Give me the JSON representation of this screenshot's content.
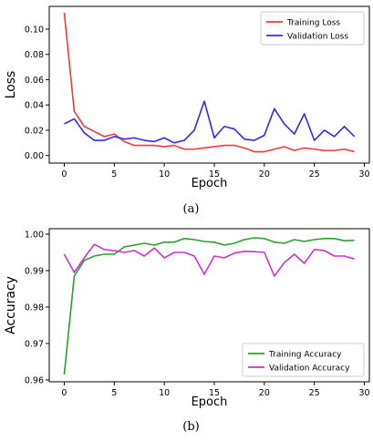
{
  "chart_data": [
    {
      "type": "line",
      "caption": "(a)",
      "xlabel": "Epoch",
      "ylabel": "Loss",
      "xlim": [
        -1.5,
        30.5
      ],
      "ylim": [
        -0.006,
        0.118
      ],
      "xticks": [
        0,
        5,
        10,
        15,
        20,
        25,
        30
      ],
      "yticks": [
        0.0,
        0.02,
        0.04,
        0.06,
        0.08,
        0.1
      ],
      "ytick_labels": [
        "0.00",
        "0.02",
        "0.04",
        "0.06",
        "0.08",
        "0.10"
      ],
      "grid": false,
      "legend_position": "top-right",
      "x": [
        0,
        1,
        2,
        3,
        4,
        5,
        6,
        7,
        8,
        9,
        10,
        11,
        12,
        13,
        14,
        15,
        16,
        17,
        18,
        19,
        20,
        21,
        22,
        23,
        24,
        25,
        26,
        27,
        28,
        29
      ],
      "series": [
        {
          "name": "Training Loss",
          "color": "#ef3b3b",
          "values": [
            0.113,
            0.035,
            0.023,
            0.019,
            0.015,
            0.017,
            0.011,
            0.008,
            0.008,
            0.008,
            0.007,
            0.008,
            0.005,
            0.005,
            0.006,
            0.007,
            0.008,
            0.008,
            0.006,
            0.003,
            0.003,
            0.005,
            0.007,
            0.004,
            0.006,
            0.005,
            0.004,
            0.004,
            0.005,
            0.003
          ]
        },
        {
          "name": "Validation Loss",
          "color": "#2b2bf0",
          "values": [
            0.025,
            0.029,
            0.018,
            0.012,
            0.012,
            0.015,
            0.013,
            0.014,
            0.012,
            0.011,
            0.014,
            0.01,
            0.012,
            0.02,
            0.043,
            0.014,
            0.023,
            0.021,
            0.013,
            0.012,
            0.016,
            0.037,
            0.025,
            0.017,
            0.033,
            0.012,
            0.02,
            0.015,
            0.023,
            0.015
          ]
        }
      ]
    },
    {
      "type": "line",
      "caption": "(b)",
      "xlabel": "Epoch",
      "ylabel": "Accuracy",
      "xlim": [
        -1.5,
        30.5
      ],
      "ylim": [
        0.9595,
        1.0015
      ],
      "xticks": [
        0,
        5,
        10,
        15,
        20,
        25,
        30
      ],
      "yticks": [
        0.96,
        0.97,
        0.98,
        0.99,
        1.0
      ],
      "ytick_labels": [
        "0.96",
        "0.97",
        "0.98",
        "0.99",
        "1.00"
      ],
      "grid": false,
      "legend_position": "bottom-right",
      "x": [
        0,
        1,
        2,
        3,
        4,
        5,
        6,
        7,
        8,
        9,
        10,
        11,
        12,
        13,
        14,
        15,
        16,
        17,
        18,
        19,
        20,
        21,
        22,
        23,
        24,
        25,
        26,
        27,
        28,
        29
      ],
      "series": [
        {
          "name": "Training Accuracy",
          "color": "#2ca02c",
          "values": [
            0.9615,
            0.9885,
            0.9928,
            0.994,
            0.9945,
            0.9945,
            0.9965,
            0.997,
            0.9975,
            0.997,
            0.9978,
            0.9978,
            0.9988,
            0.9985,
            0.998,
            0.9978,
            0.997,
            0.9975,
            0.9985,
            0.999,
            0.9988,
            0.9978,
            0.9975,
            0.9985,
            0.998,
            0.9985,
            0.9988,
            0.9988,
            0.9982,
            0.9983
          ]
        },
        {
          "name": "Validation Accuracy",
          "color": "#cc33cc",
          "values": [
            0.9945,
            0.9895,
            0.9935,
            0.9972,
            0.9958,
            0.9955,
            0.995,
            0.9955,
            0.994,
            0.9962,
            0.9935,
            0.995,
            0.995,
            0.994,
            0.989,
            0.994,
            0.9935,
            0.9948,
            0.9953,
            0.9952,
            0.995,
            0.9885,
            0.9922,
            0.9945,
            0.992,
            0.9958,
            0.9955,
            0.994,
            0.994,
            0.9932
          ]
        }
      ]
    }
  ]
}
